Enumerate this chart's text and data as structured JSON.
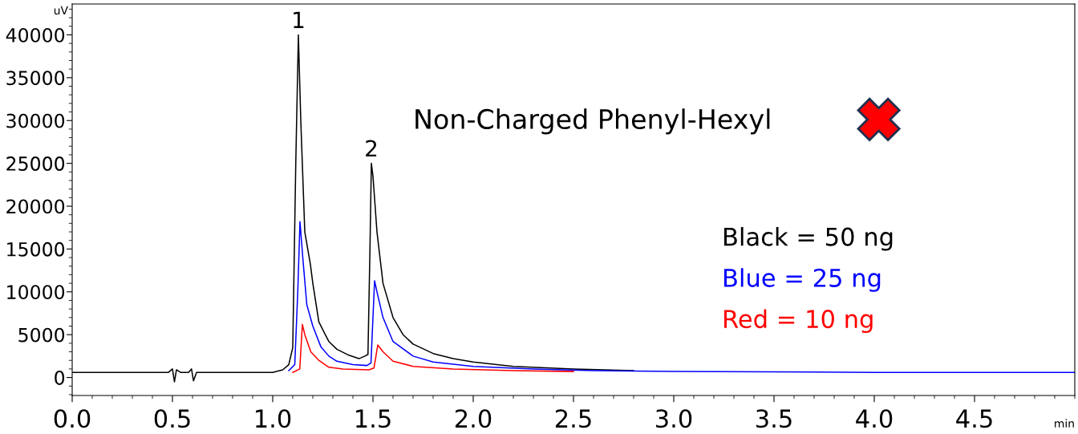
{
  "chart_data": {
    "type": "line",
    "title": "Non-Charged Phenyl-Hexyl",
    "xlabel": "min",
    "ylabel": "uV",
    "annotations": [
      {
        "text": "1",
        "x": 1.128,
        "y": 40000
      },
      {
        "text": "2",
        "x": 1.492,
        "y": 25000
      }
    ],
    "series": [
      {
        "name": "Black = 50 ng",
        "color": "#000000",
        "x": [
          0,
          0.48,
          0.5,
          0.51,
          0.52,
          0.54,
          0.58,
          0.595,
          0.605,
          0.62,
          1.0,
          1.05,
          1.08,
          1.1,
          1.115,
          1.128,
          1.14,
          1.16,
          1.188,
          1.2,
          1.23,
          1.262,
          1.28,
          1.32,
          1.38,
          1.43,
          1.46,
          1.475,
          1.485,
          1.492,
          1.5,
          1.52,
          1.55,
          1.6,
          1.65,
          1.7,
          1.8,
          1.9,
          2.0,
          2.2,
          2.5,
          2.8
        ],
        "values": [
          600,
          600,
          1000,
          -500,
          900,
          600,
          600,
          1000,
          -400,
          600,
          600,
          900,
          1500,
          3500,
          25000,
          40000,
          30000,
          17000,
          13200,
          11000,
          6500,
          5000,
          4200,
          3300,
          2600,
          2200,
          2500,
          2700,
          15000,
          25000,
          23500,
          17000,
          11000,
          7000,
          5000,
          3900,
          2800,
          2200,
          1800,
          1300,
          1000,
          800
        ]
      },
      {
        "name": "Blue = 25 ng",
        "color": "#0000ff",
        "x": [
          1.08,
          1.11,
          1.125,
          1.136,
          1.15,
          1.17,
          1.2,
          1.24,
          1.28,
          1.32,
          1.4,
          1.47,
          1.49,
          1.5,
          1.508,
          1.52,
          1.55,
          1.6,
          1.7,
          1.8,
          2.0,
          2.3,
          2.6,
          3.0,
          4.0,
          5.0
        ],
        "values": [
          800,
          1500,
          10000,
          18200,
          14000,
          8500,
          6000,
          3600,
          2500,
          1900,
          1500,
          1400,
          1700,
          7000,
          11300,
          10000,
          7000,
          4200,
          2500,
          1800,
          1300,
          1000,
          800,
          700,
          600,
          600
        ]
      },
      {
        "name": "Red = 10 ng",
        "color": "#ff0000",
        "x": [
          1.1,
          1.135,
          1.148,
          1.16,
          1.19,
          1.23,
          1.28,
          1.35,
          1.48,
          1.505,
          1.524,
          1.55,
          1.6,
          1.7,
          1.9,
          2.2,
          2.5
        ],
        "values": [
          600,
          1000,
          6200,
          5000,
          3000,
          2000,
          1200,
          1000,
          900,
          1100,
          3800,
          3000,
          1900,
          1300,
          1000,
          800,
          700
        ]
      }
    ],
    "xlim": [
      0,
      5
    ],
    "ylim": [
      -2100,
      43600
    ],
    "xticks": [
      {
        "value": 0,
        "label": "0.0"
      },
      {
        "value": 0.5,
        "label": "0.5"
      },
      {
        "value": 1,
        "label": "1.0"
      },
      {
        "value": 1.5,
        "label": "1.5"
      },
      {
        "value": 2,
        "label": "2.0"
      },
      {
        "value": 2.5,
        "label": "2.5"
      },
      {
        "value": 3,
        "label": "3.0"
      },
      {
        "value": 3.5,
        "label": "3.5"
      },
      {
        "value": 4,
        "label": "4.0"
      },
      {
        "value": 4.5,
        "label": "4.5"
      }
    ],
    "yticks": [
      0,
      5000,
      10000,
      15000,
      20000,
      25000,
      30000,
      35000,
      40000
    ],
    "grid": false,
    "legend": "right",
    "marker": "none",
    "line_style": "solid"
  }
}
